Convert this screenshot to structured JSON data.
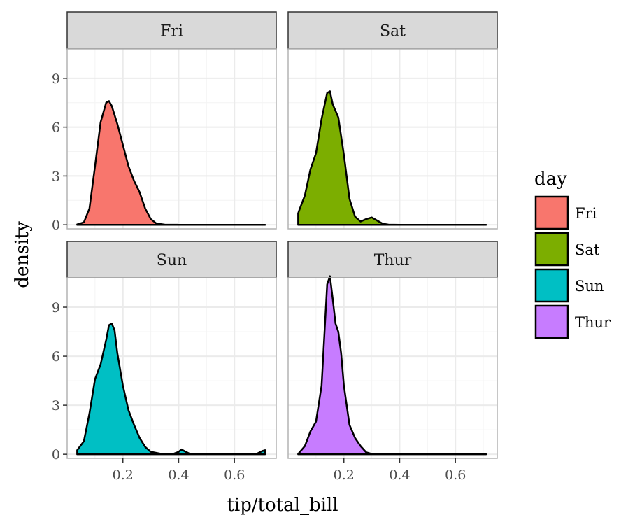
{
  "chart_data": {
    "type": "area",
    "subtype": "faceted-density",
    "xlabel": "tip/total_bill",
    "ylabel": "density",
    "xlim": [
      0.0,
      0.75
    ],
    "ylim": [
      -0.25,
      10.8
    ],
    "x_ticks": [
      0.2,
      0.4,
      0.6
    ],
    "x_tick_labels": [
      "0.2",
      "0.4",
      "0.6"
    ],
    "y_ticks": [
      0,
      3,
      6,
      9
    ],
    "y_tick_labels": [
      "0",
      "3",
      "6",
      "9"
    ],
    "grid": true,
    "legend": {
      "title": "day",
      "position": "right",
      "items": [
        {
          "label": "Fri",
          "color": "#F8766D"
        },
        {
          "label": "Sat",
          "color": "#7CAE00"
        },
        {
          "label": "Sun",
          "color": "#00BFC4"
        },
        {
          "label": "Thur",
          "color": "#C77CFF"
        }
      ]
    },
    "series": [
      {
        "name": "Fri",
        "color": "#F8766D",
        "x": [
          0.036,
          0.06,
          0.08,
          0.1,
          0.12,
          0.14,
          0.15,
          0.16,
          0.18,
          0.2,
          0.22,
          0.24,
          0.26,
          0.28,
          0.3,
          0.32,
          0.35,
          0.4,
          0.5,
          0.6,
          0.7,
          0.71
        ],
        "y": [
          0.02,
          0.15,
          1.0,
          3.6,
          6.3,
          7.5,
          7.6,
          7.3,
          6.2,
          4.9,
          3.6,
          2.7,
          2.0,
          1.0,
          0.35,
          0.08,
          0.01,
          0,
          0,
          0,
          0,
          0
        ]
      },
      {
        "name": "Sat",
        "color": "#7CAE00",
        "x": [
          0.036,
          0.04,
          0.06,
          0.08,
          0.1,
          0.12,
          0.14,
          0.15,
          0.16,
          0.18,
          0.2,
          0.22,
          0.24,
          0.26,
          0.28,
          0.3,
          0.32,
          0.34,
          0.36,
          0.4,
          0.5,
          0.6,
          0.7,
          0.71
        ],
        "y": [
          0.7,
          0.9,
          1.8,
          3.4,
          4.4,
          6.5,
          8.1,
          8.2,
          7.4,
          6.6,
          4.3,
          1.6,
          0.5,
          0.2,
          0.35,
          0.45,
          0.25,
          0.06,
          0.01,
          0,
          0,
          0,
          0,
          0
        ]
      },
      {
        "name": "Sun",
        "color": "#00BFC4",
        "x": [
          0.036,
          0.06,
          0.08,
          0.1,
          0.12,
          0.14,
          0.15,
          0.16,
          0.17,
          0.18,
          0.2,
          0.22,
          0.24,
          0.26,
          0.28,
          0.3,
          0.34,
          0.38,
          0.4,
          0.41,
          0.42,
          0.44,
          0.5,
          0.6,
          0.68,
          0.7,
          0.71
        ],
        "y": [
          0.25,
          0.8,
          2.5,
          4.6,
          5.5,
          7.0,
          7.9,
          8.0,
          7.6,
          6.2,
          4.2,
          2.7,
          1.8,
          1.0,
          0.45,
          0.15,
          0.02,
          0.02,
          0.15,
          0.3,
          0.2,
          0.03,
          0,
          0,
          0.03,
          0.2,
          0.25
        ]
      },
      {
        "name": "Thur",
        "color": "#C77CFF",
        "x": [
          0.036,
          0.06,
          0.08,
          0.1,
          0.12,
          0.13,
          0.14,
          0.15,
          0.16,
          0.17,
          0.18,
          0.19,
          0.2,
          0.22,
          0.24,
          0.26,
          0.28,
          0.3,
          0.32,
          0.4,
          0.5,
          0.6,
          0.7,
          0.71
        ],
        "y": [
          0.02,
          0.5,
          1.4,
          2.0,
          4.2,
          7.3,
          10.4,
          10.9,
          9.5,
          8.0,
          7.5,
          6.2,
          4.2,
          1.8,
          1.0,
          0.5,
          0.12,
          0.02,
          0.0,
          0,
          0,
          0,
          0,
          0
        ]
      }
    ]
  }
}
